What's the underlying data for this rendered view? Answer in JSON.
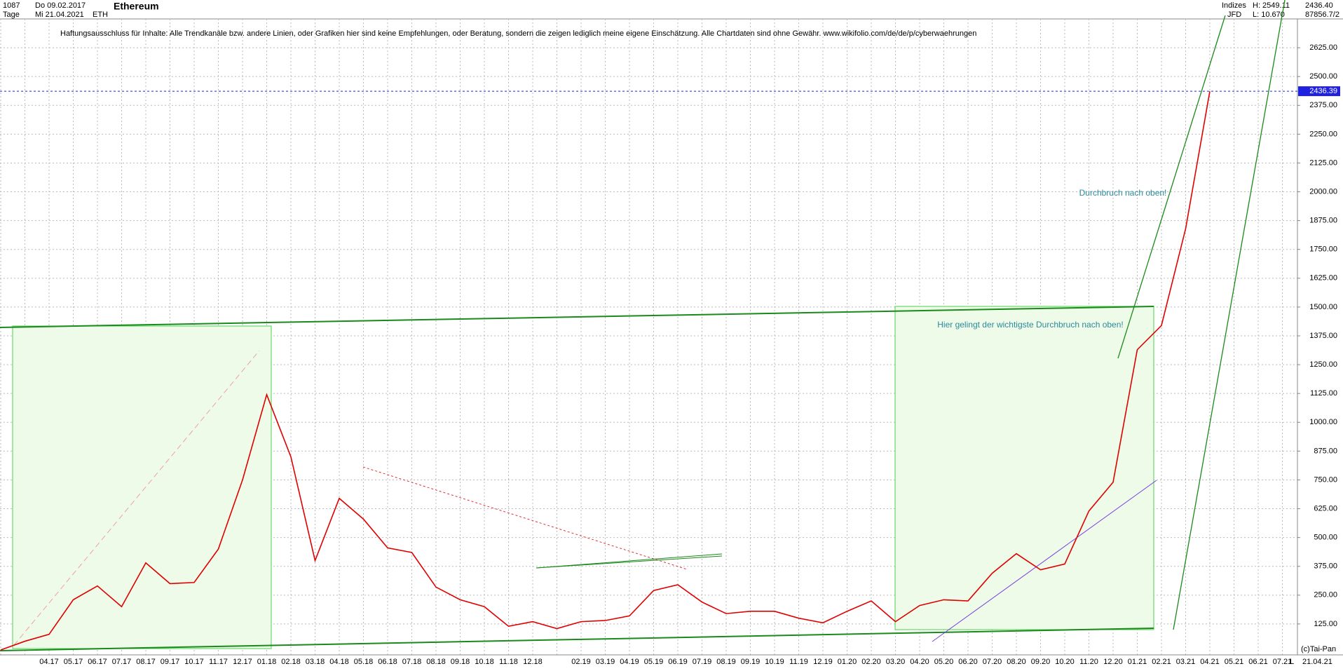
{
  "header": {
    "bars": "1087",
    "start": "Do 09.02.2017",
    "period": "Tage",
    "end": "Mi 21.04.2021",
    "symbol": "ETH",
    "title": "Ethereum",
    "group": "Indizes",
    "source": "JFD",
    "high": "H: 2549.11",
    "low": "L: 10.670",
    "last": "2436.40",
    "volume": "87856.7/2",
    "disclaimer": "Haftungsausschluss für Inhalte: Alle Trendkanäle bzw. andere Linien, oder Grafiken hier sind keine Empfehlungen, oder Beratung, sondern die zeigen lediglich meine eigene Einschätzung. Alle Chartdaten sind ohne Gewähr.  www.wikifolio.com/de/de/p/cyberwaehrungen"
  },
  "footer": {
    "copyright": "(c)Tai-Pan",
    "date": "21.04.21",
    "scale": "L"
  },
  "chart_data": {
    "type": "line",
    "categories": [
      null,
      null,
      "04.17",
      "05.17",
      "06.17",
      "07.17",
      "08.17",
      "09.17",
      "10.17",
      "11.17",
      "12.17",
      "01.18",
      "02.18",
      "03.18",
      "04.18",
      "05.18",
      "06.18",
      "07.18",
      "08.18",
      "09.18",
      "10.18",
      "11.18",
      "12.18",
      null,
      "02.19",
      "03.19",
      "04.19",
      "05.19",
      "06.19",
      "07.19",
      "08.19",
      "09.19",
      "10.19",
      "11.19",
      "12.19",
      "01.20",
      "02.20",
      "03.20",
      "04.20",
      "05.20",
      "06.20",
      "07.20",
      "08.20",
      "09.20",
      "10.20",
      "11.20",
      "12.20",
      "01.21",
      "02.21",
      "03.21",
      "04.21",
      "05.21",
      "06.21",
      "07.21"
    ],
    "series": [
      {
        "name": "ETH",
        "color": "#e00000",
        "values": [
          12,
          50,
          80,
          230,
          290,
          200,
          390,
          300,
          305,
          450,
          750,
          1120,
          850,
          400,
          670,
          580,
          455,
          435,
          285,
          230,
          200,
          115,
          135,
          105,
          135,
          140,
          160,
          270,
          295,
          220,
          170,
          180,
          180,
          150,
          130,
          180,
          225,
          135,
          205,
          230,
          225,
          345,
          430,
          360,
          385,
          615,
          740,
          1315,
          1420,
          1840,
          2436,
          null,
          null,
          null
        ]
      }
    ],
    "ylim": [
      0,
      2750
    ],
    "yticks": [
      {
        "value": 125,
        "label": "125.00"
      },
      {
        "value": 250,
        "label": "250.00"
      },
      {
        "value": 375,
        "label": "375.00"
      },
      {
        "value": 500,
        "label": "500.00"
      },
      {
        "value": 625,
        "label": "625.00"
      },
      {
        "value": 750,
        "label": "750.00"
      },
      {
        "value": 875,
        "label": "875.00"
      },
      {
        "value": 1000,
        "label": "1000.00"
      },
      {
        "value": 1125,
        "label": "1125.00"
      },
      {
        "value": 1250,
        "label": "1250.00"
      },
      {
        "value": 1375,
        "label": "1375.00"
      },
      {
        "value": 1500,
        "label": "1500.00"
      },
      {
        "value": 1625,
        "label": "1625.00"
      },
      {
        "value": 1750,
        "label": "1750.00"
      },
      {
        "value": 1875,
        "label": "1875.00"
      },
      {
        "value": 2000,
        "label": "2000.00"
      },
      {
        "value": 2125,
        "label": "2125.00"
      },
      {
        "value": 2250,
        "label": "2250.00"
      },
      {
        "value": 2375,
        "label": "2375.00"
      },
      {
        "value": 2500,
        "label": "2500.00"
      },
      {
        "value": 2625,
        "label": "2625.00"
      }
    ],
    "current_price": 2436.39,
    "grid": true,
    "annotations": [
      "Durchbruch nach oben!",
      "Hier gelingt der wichtigste Durchbruch nach oben!"
    ]
  }
}
